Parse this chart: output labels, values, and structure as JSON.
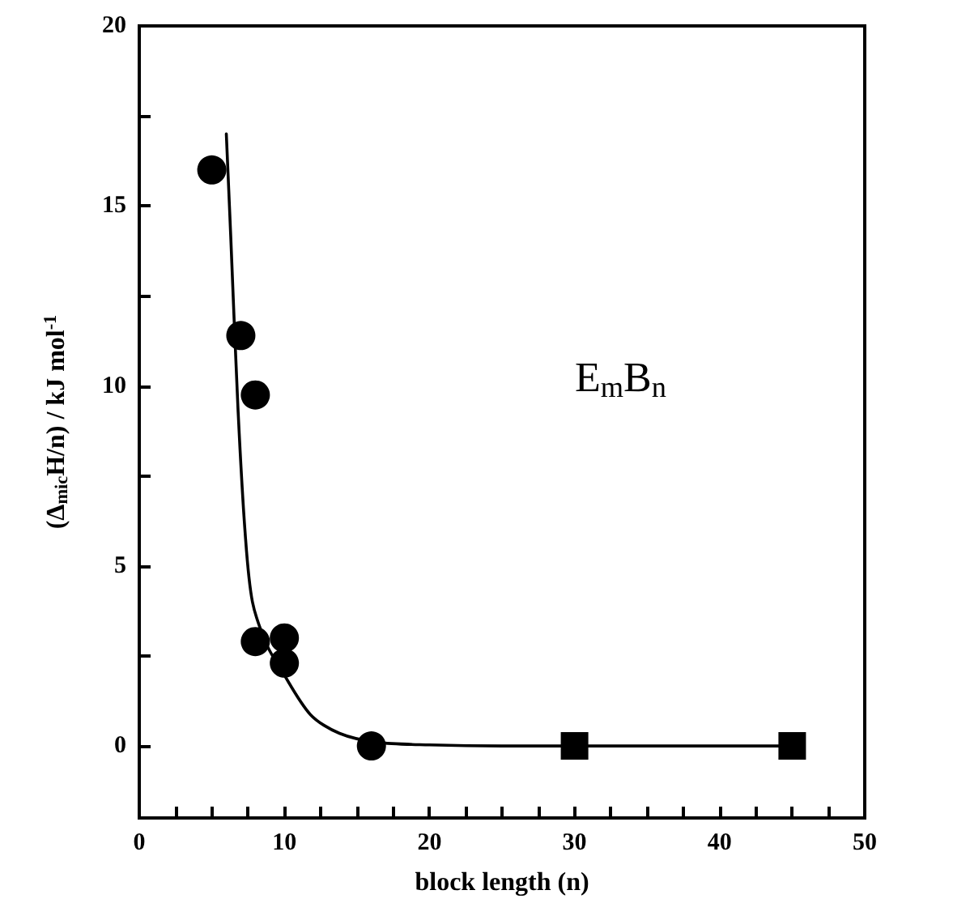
{
  "chart_data": {
    "type": "scatter",
    "xlabel": "block length (n)",
    "ylabel": "(Δ$_{mic}$H/n) / kJ mol$^{-1}$",
    "annotations": [
      "E$_{m}$B$_{n}$"
    ],
    "series": [
      {
        "marker": "circle",
        "color": "#000000",
        "x": [
          5,
          7,
          8,
          8,
          10,
          10,
          16
        ],
        "values": [
          16,
          11.4,
          9.75,
          2.9,
          3.0,
          2.3,
          0
        ]
      },
      {
        "marker": "square",
        "color": "#000000",
        "x": [
          30,
          45
        ],
        "values": [
          0,
          0
        ]
      },
      {
        "type": "line",
        "marker": "none",
        "color": "#000000",
        "x": [
          6,
          6.3,
          6.8,
          7.3,
          7.8,
          8.8,
          9.8,
          11.8,
          13.8,
          16.4,
          20,
          25,
          45
        ],
        "values": [
          17,
          14.2,
          9.4,
          5.9,
          4.0,
          2.8,
          2.1,
          0.87,
          0.35,
          0.1,
          0.03,
          0,
          0
        ]
      }
    ],
    "xlim": [
      0,
      50
    ],
    "xticks": [
      0,
      {
        "value": 2.5,
        "label": null
      },
      {
        "value": 5,
        "label": null
      },
      {
        "value": 7.5,
        "label": null
      },
      10,
      {
        "value": 12.5,
        "label": null
      },
      {
        "value": 15,
        "label": null
      },
      {
        "value": 17.5,
        "label": null
      },
      20,
      {
        "value": 22.5,
        "label": null
      },
      {
        "value": 25,
        "label": null
      },
      {
        "value": 27.5,
        "label": null
      },
      30,
      {
        "value": 32.5,
        "label": null
      },
      {
        "value": 35,
        "label": null
      },
      {
        "value": 37.5,
        "label": null
      },
      40,
      {
        "value": 42.5,
        "label": null
      },
      {
        "value": 45,
        "label": null
      },
      {
        "value": 47.5,
        "label": null
      },
      50
    ],
    "ylim": [
      -2,
      20
    ],
    "yticks": [
      0,
      {
        "value": 2.5,
        "label": null
      },
      5,
      {
        "value": 7.5,
        "label": null
      },
      10,
      {
        "value": 12.5,
        "label": null
      },
      15,
      {
        "value": 17.5,
        "label": null
      },
      20
    ],
    "grid": false
  }
}
